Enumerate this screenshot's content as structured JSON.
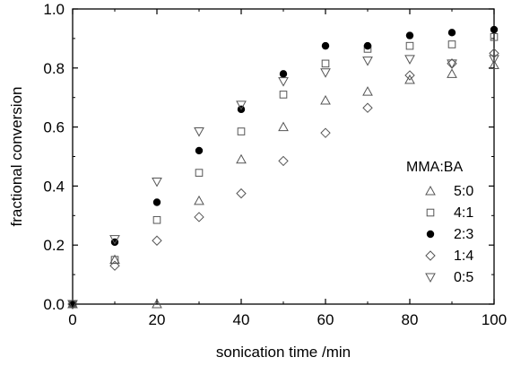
{
  "chart_data": {
    "type": "scatter",
    "title": "",
    "xlabel": "sonication time /min",
    "ylabel": "fractional conversion",
    "xlim": [
      0,
      100
    ],
    "ylim": [
      0.0,
      1.0
    ],
    "x_ticks": [
      "0",
      "20",
      "40",
      "60",
      "80",
      "100"
    ],
    "y_ticks": [
      "0.0",
      "0.2",
      "0.4",
      "0.6",
      "0.8",
      "1.0"
    ],
    "grid": false,
    "legend_title": "MMA:BA",
    "legend_position": "bottom-right",
    "series": [
      {
        "name": "5:0",
        "marker": "triangle-up",
        "color": "#555555",
        "points": [
          [
            0,
            0.0
          ],
          [
            10,
            0.15
          ],
          [
            20,
            0.0
          ],
          [
            30,
            0.35
          ],
          [
            40,
            0.49
          ],
          [
            50,
            0.6
          ],
          [
            60,
            0.69
          ],
          [
            70,
            0.72
          ],
          [
            80,
            0.76
          ],
          [
            90,
            0.78
          ],
          [
            100,
            0.81
          ]
        ]
      },
      {
        "name": "4:1",
        "marker": "square",
        "color": "#555555",
        "points": [
          [
            0,
            0.0
          ],
          [
            10,
            0.15
          ],
          [
            20,
            0.285
          ],
          [
            30,
            0.445
          ],
          [
            40,
            0.585
          ],
          [
            50,
            0.71
          ],
          [
            60,
            0.815
          ],
          [
            70,
            0.865
          ],
          [
            80,
            0.875
          ],
          [
            90,
            0.88
          ],
          [
            100,
            0.905
          ]
        ]
      },
      {
        "name": "2:3",
        "marker": "circle-filled",
        "color": "#000000",
        "points": [
          [
            0,
            0.0
          ],
          [
            10,
            0.21
          ],
          [
            20,
            0.345
          ],
          [
            30,
            0.52
          ],
          [
            40,
            0.66
          ],
          [
            50,
            0.78
          ],
          [
            60,
            0.875
          ],
          [
            70,
            0.875
          ],
          [
            80,
            0.91
          ],
          [
            90,
            0.92
          ],
          [
            100,
            0.93
          ]
        ]
      },
      {
        "name": "1:4",
        "marker": "diamond",
        "color": "#555555",
        "points": [
          [
            0,
            0.0
          ],
          [
            10,
            0.13
          ],
          [
            20,
            0.215
          ],
          [
            30,
            0.295
          ],
          [
            40,
            0.375
          ],
          [
            50,
            0.485
          ],
          [
            60,
            0.58
          ],
          [
            70,
            0.665
          ],
          [
            80,
            0.775
          ],
          [
            90,
            0.815
          ],
          [
            100,
            0.85
          ]
        ]
      },
      {
        "name": "0:5",
        "marker": "triangle-down",
        "color": "#555555",
        "points": [
          [
            0,
            0.0
          ],
          [
            10,
            0.22
          ],
          [
            20,
            0.415
          ],
          [
            30,
            0.585
          ],
          [
            40,
            0.675
          ],
          [
            50,
            0.755
          ],
          [
            60,
            0.785
          ],
          [
            70,
            0.825
          ],
          [
            80,
            0.83
          ],
          [
            90,
            0.815
          ],
          [
            100,
            0.83
          ]
        ]
      }
    ]
  }
}
